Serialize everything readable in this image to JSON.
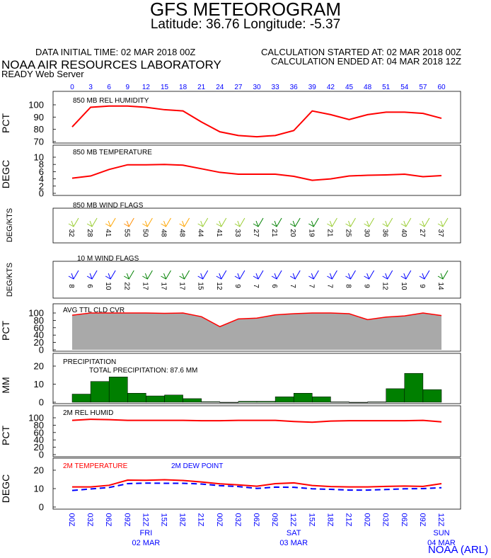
{
  "header": {
    "title": "GFS METEOROGRAM",
    "location": "Latitude: 36.76 Longitude:  -5.37",
    "initial_time": "DATA INITIAL TIME: 02 MAR 2018 00Z",
    "calc_started": "CALCULATION STARTED AT: 02 MAR 2018 00Z",
    "lab": "NOAA AIR RESOURCES LABORATORY",
    "calc_ended": "CALCULATION ENDED AT: 04 MAR 2018 12Z",
    "server": "READY Web Server",
    "credit": "NOAA (ARL)"
  },
  "colors": {
    "line": "#ff0000",
    "dew": "#0000ff",
    "cloud": "#a9a9a9",
    "precip": "#007f00",
    "axis_text": "#0000ff"
  },
  "forecast_hours": [
    "0",
    "3",
    "6",
    "9",
    "12",
    "15",
    "18",
    "21",
    "24",
    "27",
    "30",
    "33",
    "36",
    "39",
    "42",
    "45",
    "48",
    "51",
    "54",
    "57",
    "60"
  ],
  "time_labels": [
    "00Z",
    "03Z",
    "06Z",
    "09Z",
    "12Z",
    "15Z",
    "18Z",
    "21Z",
    "00Z",
    "03Z",
    "06Z",
    "09Z",
    "12Z",
    "15Z",
    "18Z",
    "21Z",
    "00Z",
    "03Z",
    "06Z",
    "09Z",
    "12Z"
  ],
  "days": [
    {
      "name": "FRI",
      "date": "02 MAR"
    },
    {
      "name": "SAT",
      "date": "03 MAR"
    },
    {
      "name": "SUN",
      "date": "04 MAR"
    }
  ],
  "chart_data": [
    {
      "type": "line",
      "title": "850 MB  REL HUMIDITY",
      "ylabel": "PCT",
      "ylim": [
        70,
        100
      ],
      "yticks": [
        "100",
        "90",
        "80",
        "70"
      ],
      "series": [
        {
          "values": [
            82,
            98,
            99,
            99,
            98,
            96,
            95,
            86,
            78,
            75,
            74,
            75,
            79,
            95,
            92,
            88,
            92,
            94,
            94,
            93,
            89
          ]
        }
      ]
    },
    {
      "type": "line",
      "title": "850 MB  TEMPERATURE",
      "ylabel": "DEGC",
      "ylim": [
        0,
        10
      ],
      "yticks": [
        "10",
        "8",
        "6",
        "4",
        "2",
        "0"
      ],
      "series": [
        {
          "values": [
            4.2,
            4.8,
            6.6,
            7.9,
            7.9,
            8.0,
            7.8,
            6.8,
            5.8,
            5.3,
            5.3,
            5.3,
            4.7,
            3.6,
            4.0,
            4.8,
            5.0,
            5.1,
            5.3,
            4.6,
            4.9
          ]
        }
      ]
    },
    {
      "type": "wind_flags",
      "title": "850 MB  WIND FLAGS",
      "ylabel": "DEG/KTS",
      "speeds": [
        "32",
        "28",
        "41",
        "55",
        "50",
        "48",
        "48",
        "44",
        "41",
        "33",
        "27",
        "21",
        "20",
        "19",
        "21",
        "25",
        "30",
        "36",
        "40",
        "27",
        "37"
      ],
      "colors": [
        "#9acd32",
        "#9acd32",
        "#ffa500",
        "#ff8c00",
        "#ffa500",
        "#ffa500",
        "#ffa500",
        "#9acd32",
        "#9acd32",
        "#9acd32",
        "#008000",
        "#008000",
        "#008000",
        "#008000",
        "#9acd32",
        "#9acd32",
        "#9acd32",
        "#9acd32",
        "#9acd32",
        "#9acd32",
        "#9acd32"
      ]
    },
    {
      "type": "wind_flags",
      "title": "10 M  WIND FLAGS",
      "ylabel": "DEG/KTS",
      "speeds": [
        "8",
        "6",
        "10",
        "22",
        "17",
        "17",
        "17",
        "15",
        "12",
        "9",
        "7",
        "6",
        "7",
        "7",
        "7",
        "8",
        "9",
        "12",
        "10",
        "9",
        "14"
      ],
      "colors": [
        "#0000ff",
        "#0000ff",
        "#0000ff",
        "#008000",
        "#008000",
        "#008000",
        "#008000",
        "#0000ff",
        "#0000ff",
        "#0000ff",
        "#0000ff",
        "#0000ff",
        "#0000ff",
        "#0000ff",
        "#0000ff",
        "#0000ff",
        "#0000ff",
        "#0000ff",
        "#0000ff",
        "#0000ff",
        "#008000"
      ]
    },
    {
      "type": "area",
      "title": "AVG TTL CLD CVR",
      "ylabel": "PCT",
      "ylim": [
        0,
        100
      ],
      "yticks": [
        "100",
        "80",
        "60",
        "40",
        "20",
        "0"
      ],
      "series": [
        {
          "values": [
            94,
            100,
            100,
            100,
            100,
            99,
            100,
            90,
            63,
            84,
            86,
            95,
            98,
            100,
            100,
            98,
            82,
            89,
            92,
            100,
            93
          ]
        }
      ]
    },
    {
      "type": "bar",
      "title": "PRECIPITATION",
      "subtitle": "TOTAL PRECIPITATION:  87.6 MM",
      "ylabel": "MM",
      "ylim": [
        0,
        20
      ],
      "yticks": [
        "20",
        "10",
        "0"
      ],
      "series": [
        {
          "values": [
            4.5,
            11.5,
            14,
            5,
            3.5,
            4,
            2,
            0.3,
            0,
            0.5,
            0.5,
            3,
            5,
            3,
            0.2,
            0,
            0.2,
            7.5,
            16,
            7
          ]
        }
      ]
    },
    {
      "type": "line",
      "title": "2M REL HUMID",
      "ylabel": "PCT",
      "ylim": [
        0,
        100
      ],
      "yticks": [
        "100",
        "80",
        "60",
        "40",
        "20",
        "0"
      ],
      "series": [
        {
          "values": [
            93,
            96,
            95,
            93,
            93,
            93,
            93,
            92,
            92,
            93,
            93,
            93,
            90,
            88,
            91,
            92,
            92,
            92,
            92,
            93,
            89
          ]
        }
      ]
    },
    {
      "type": "line",
      "ylabel": "DEGC",
      "ylim": [
        0,
        20
      ],
      "yticks": [
        "20",
        "10",
        "0"
      ],
      "series": [
        {
          "name": "2M TEMPERATURE",
          "values": [
            10.9,
            10.9,
            11.8,
            14.6,
            14.5,
            14.8,
            14.4,
            13.6,
            12.6,
            12.0,
            11.3,
            12.7,
            13.1,
            11.7,
            11.1,
            10.9,
            10.9,
            11.2,
            11.4,
            11.2,
            12.7
          ]
        },
        {
          "name": "2M   DEW POINT",
          "values": [
            9.0,
            9.8,
            10.6,
            12.7,
            13.0,
            12.9,
            12.9,
            12.5,
            11.6,
            11.1,
            10.1,
            10.8,
            10.7,
            9.9,
            9.6,
            9.2,
            9.2,
            9.5,
            9.9,
            10.0,
            10.5
          ]
        }
      ]
    }
  ]
}
